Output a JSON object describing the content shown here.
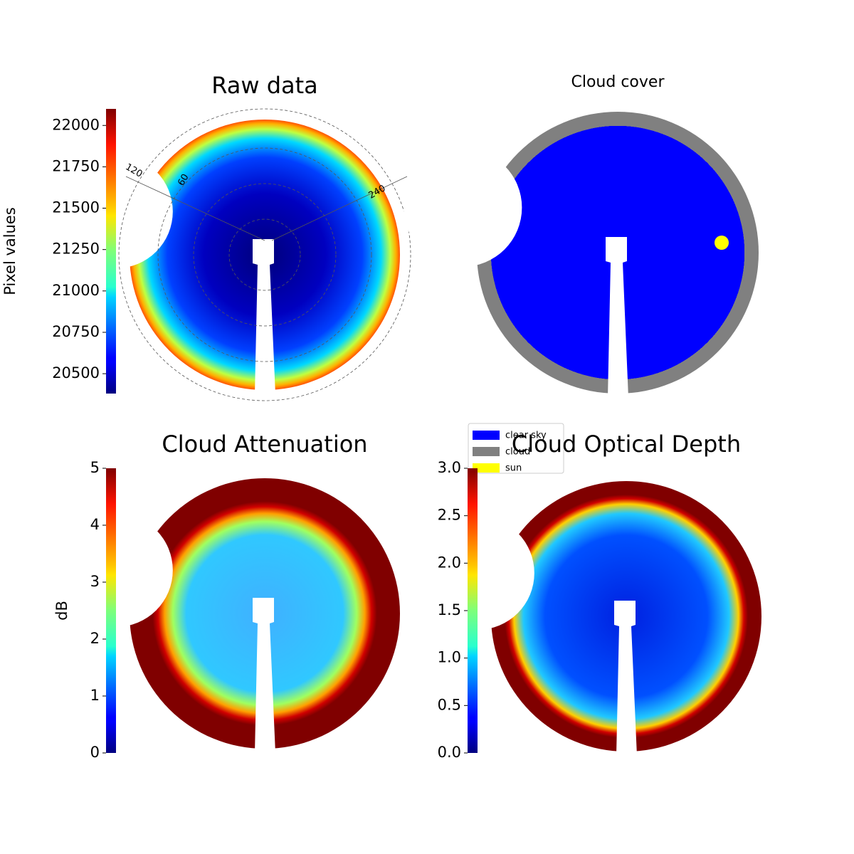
{
  "chart_data": [
    {
      "type": "image",
      "title": "Raw data",
      "colorbar_label": "Pixel values",
      "colormap": "jet",
      "clim": [
        20380,
        22100
      ],
      "cticks": [
        20500,
        20750,
        21000,
        21250,
        21500,
        21750,
        22000
      ],
      "annotations": [
        "120",
        "60",
        "240"
      ]
    },
    {
      "type": "image",
      "title": "Cloud cover",
      "legend": "lower left",
      "series": [
        {
          "name": "clear sky",
          "color": "#0000ff"
        },
        {
          "name": "cloud",
          "color": "#808080"
        },
        {
          "name": "sun",
          "color": "#ffff00"
        }
      ]
    },
    {
      "type": "image",
      "title": "Cloud Attenuation",
      "colorbar_label": "dB",
      "colormap": "jet",
      "clim": [
        0,
        5
      ],
      "cticks": [
        0,
        1,
        2,
        3,
        4,
        5
      ]
    },
    {
      "type": "image",
      "title": "Cloud Optical Depth",
      "colormap": "jet",
      "clim": [
        0,
        3
      ],
      "cticks": [
        {
          "value": 0,
          "label": "0.0"
        },
        {
          "value": 0.5,
          "label": "0.5"
        },
        {
          "value": 1,
          "label": "1.0"
        },
        {
          "value": 1.5,
          "label": "1.5"
        },
        {
          "value": 2,
          "label": "2.0"
        },
        {
          "value": 2.5,
          "label": "2.5"
        },
        {
          "value": 3,
          "label": "3.0"
        }
      ]
    }
  ]
}
